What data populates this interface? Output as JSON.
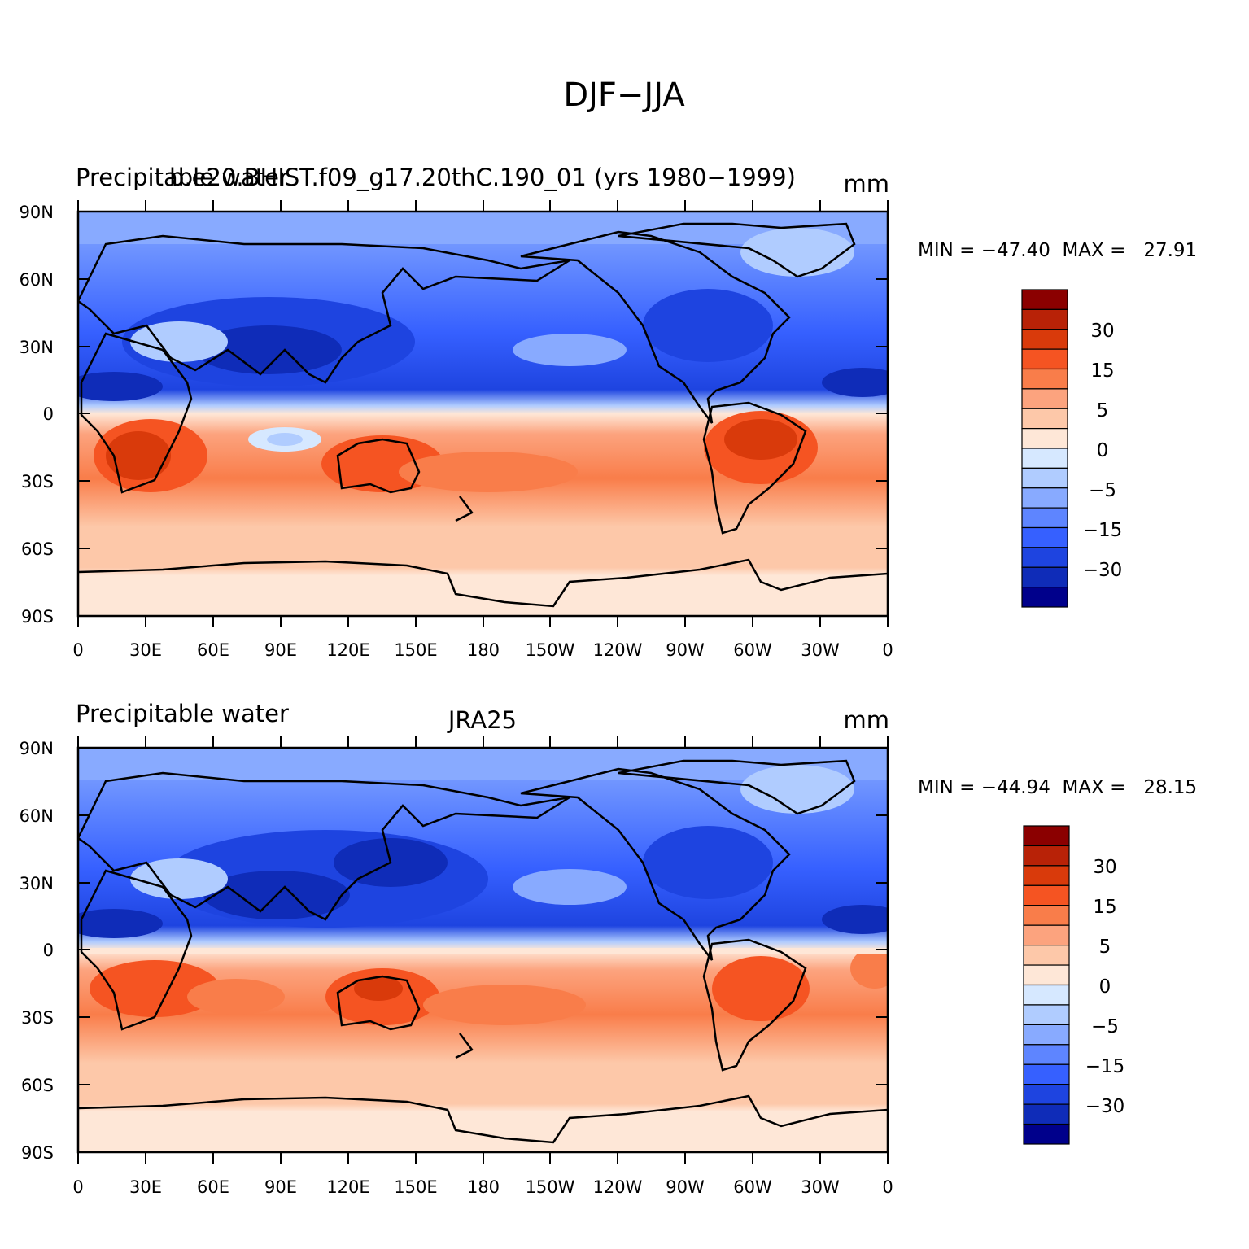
{
  "title": "DJF−JJA",
  "colorbar_levels": [
    "30",
    "15",
    "5",
    "0",
    "−5",
    "−15",
    "−30"
  ],
  "colorbar_colors": [
    "#8b0000",
    "#b82207",
    "#d93a0b",
    "#f55422",
    "#f97d4a",
    "#fca37e",
    "#fdc8a9",
    "#fee7d7",
    "#d6e8ff",
    "#b0ccff",
    "#88aaff",
    "#5e85ff",
    "#3660ff",
    "#1e44e0",
    "#0f2cb8",
    "#00008b"
  ],
  "lat_labels": [
    "90N",
    "60N",
    "30N",
    "0",
    "30S",
    "60S",
    "90S"
  ],
  "lon_labels": [
    "0",
    "30E",
    "60E",
    "90E",
    "120E",
    "150E",
    "180",
    "150W",
    "120W",
    "90W",
    "60W",
    "30W",
    "0"
  ],
  "panels": [
    {
      "left_title": "Precipitable water",
      "center_title": "b.e20.BHIST.f09_g17.20thC.190_01 (yrs 1980−1999)",
      "units": "mm",
      "min_max": "MIN = −47.40  MAX =   27.91"
    },
    {
      "left_title": "Precipitable water",
      "center_title": "JRA25",
      "units": "mm",
      "min_max": "MIN = −44.94  MAX =   28.15"
    }
  ]
}
